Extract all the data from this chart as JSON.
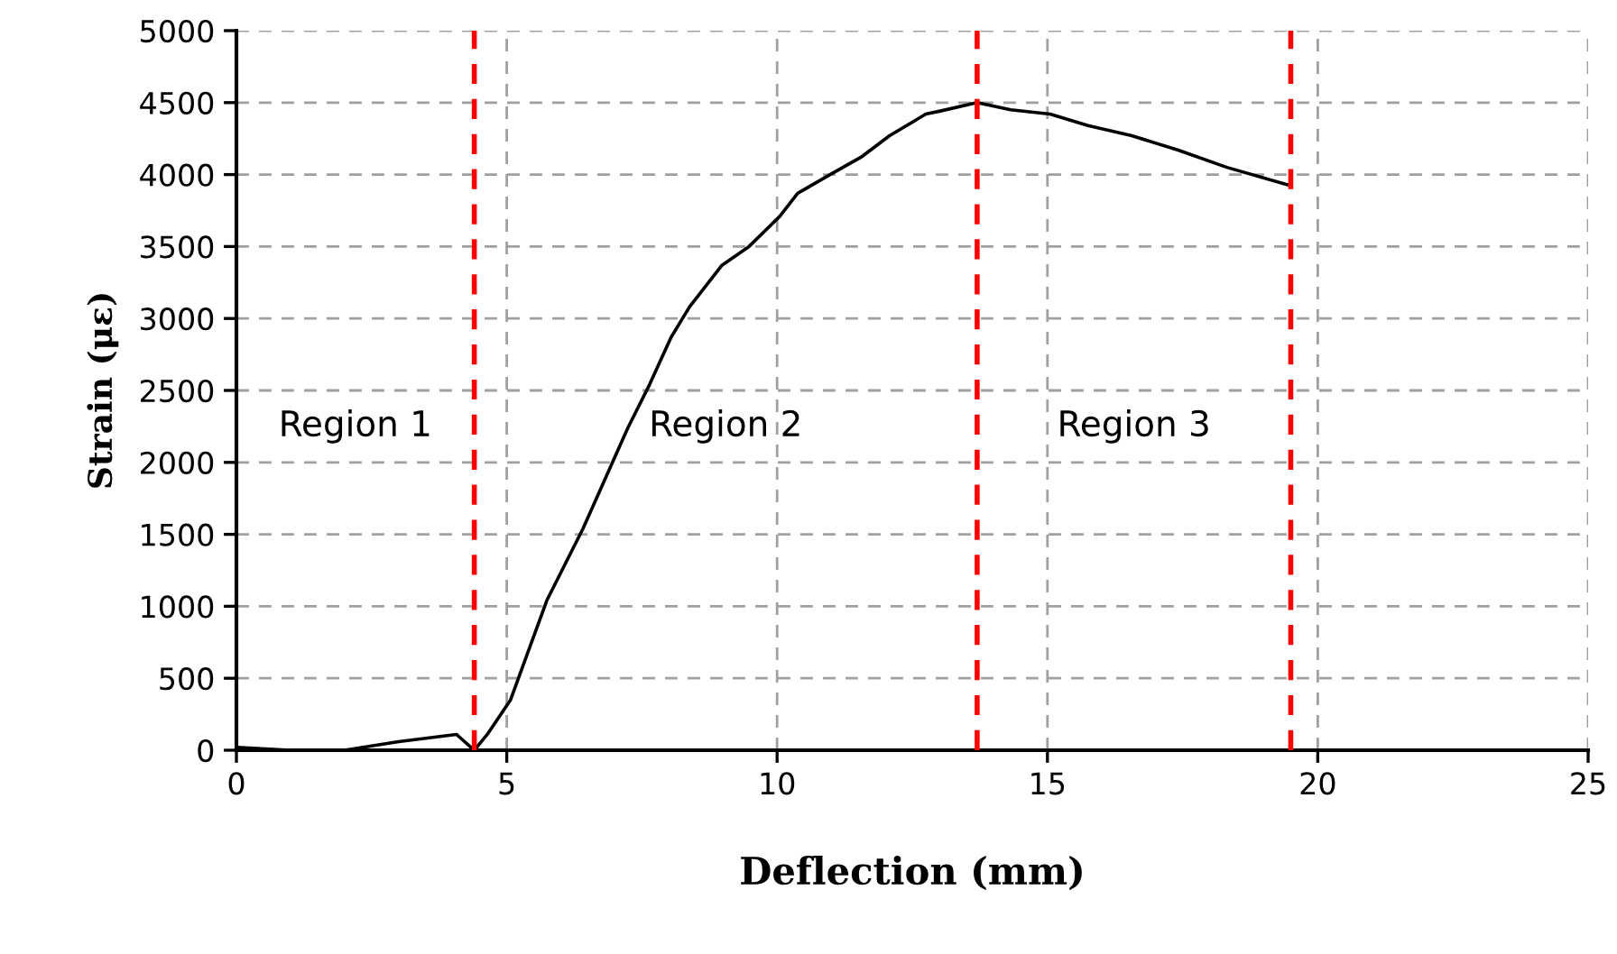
{
  "chart_data": {
    "type": "line",
    "xlabel": "Deflection (mm)",
    "ylabel": "Strain (με)",
    "series": [
      {
        "color": "#000000",
        "x": [
          0,
          1,
          2,
          3,
          4.07,
          4.4,
          4.64,
          5.07,
          5.74,
          6.41,
          7.24,
          7.64,
          8.04,
          8.38,
          8.98,
          9.48,
          10.05,
          10.38,
          10.98,
          11.55,
          12.08,
          12.75,
          13.0,
          13.7,
          14.32,
          15.05,
          15.75,
          16.56,
          17.42,
          18.32,
          19.43
        ],
        "values": [
          20,
          0,
          0,
          60,
          110,
          0,
          110,
          350,
          1040,
          1540,
          2240,
          2540,
          2870,
          3080,
          3370,
          3500,
          3710,
          3870,
          4000,
          4120,
          4270,
          4420,
          4440,
          4500,
          4450,
          4420,
          4340,
          4270,
          4170,
          4050,
          3930
        ]
      }
    ],
    "xlim": [
      0,
      25
    ],
    "xticks": [
      0,
      5,
      10,
      15,
      20,
      25
    ],
    "ylim": [
      0,
      5000
    ],
    "yticks": [
      0,
      500,
      1000,
      1500,
      2000,
      2500,
      3000,
      3500,
      4000,
      4500,
      5000
    ],
    "grid": true,
    "marker": "none",
    "line_style": "solid",
    "ref_lines": [
      {
        "axis": "x",
        "value": 4.4,
        "color": "#ff0000",
        "line_style": "dashed"
      },
      {
        "axis": "x",
        "value": 13.7,
        "color": "#ff0000",
        "line_style": "dashed"
      },
      {
        "axis": "x",
        "value": 19.5,
        "color": "#ff0000",
        "line_style": "dashed"
      }
    ],
    "annotations": [
      "Region 1",
      "Region 2",
      "Region 3"
    ]
  }
}
